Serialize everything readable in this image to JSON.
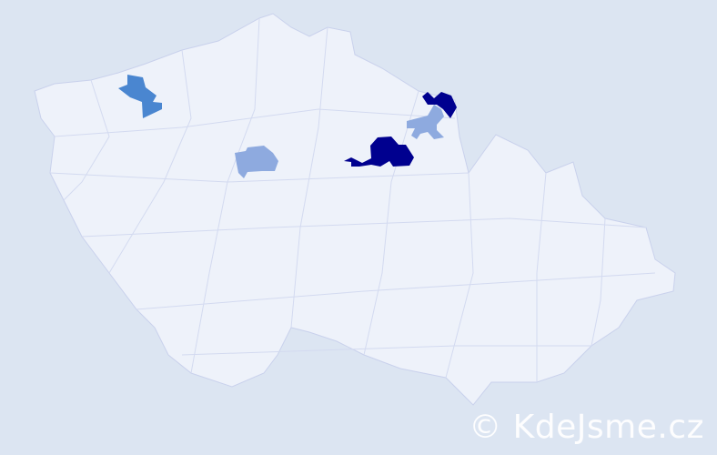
{
  "map": {
    "colors": {
      "background": "#dce5f2",
      "land": "#eef2fa",
      "border": "#c9d1ec",
      "high": "#00008f",
      "medium": "#4a86d0",
      "low": "#8eaadf"
    },
    "highlighted_regions": [
      {
        "level": "medium"
      },
      {
        "level": "low"
      },
      {
        "level": "high"
      },
      {
        "level": "high"
      },
      {
        "level": "low"
      }
    ]
  },
  "watermark": "© KdeJsme.cz"
}
